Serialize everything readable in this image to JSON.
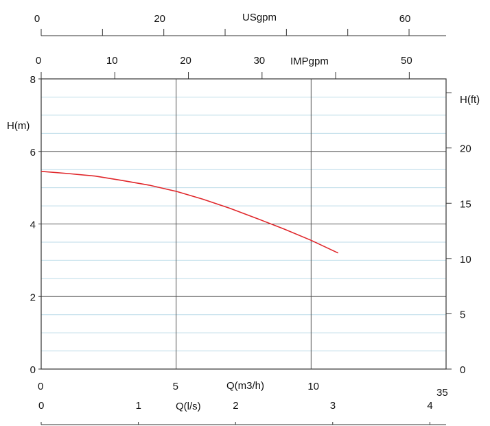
{
  "chart_data": {
    "type": "line",
    "title": "",
    "grid": true,
    "colors": {
      "curve": "#e0262a",
      "grid_major": "#555555",
      "grid_minor": "#bcdbe8"
    },
    "axes": {
      "x_main": {
        "label": "Q(m3/h)",
        "range": [
          0,
          15
        ],
        "ticks": [
          0,
          5,
          10
        ],
        "tick_labels": [
          "0",
          "5",
          "10"
        ]
      },
      "x_ls": {
        "label": "Q(l/s)",
        "range": [
          0,
          4.1667
        ],
        "ticks": [
          0,
          1,
          2,
          3,
          4
        ],
        "tick_labels": [
          "0",
          "1",
          "2",
          "3",
          "4"
        ]
      },
      "x_usgpm": {
        "label": "USgpm",
        "range": [
          0,
          66.04
        ],
        "ticks": [
          0,
          10,
          20,
          30,
          40,
          50,
          60
        ],
        "tick_labels": [
          "0",
          "",
          "20",
          "",
          "",
          "",
          "60"
        ]
      },
      "x_impgpm": {
        "label": "IMPgpm",
        "range": [
          0,
          55
        ],
        "ticks": [
          0,
          10,
          20,
          30,
          40,
          50
        ],
        "tick_labels": [
          "0",
          "10",
          "20",
          "30",
          "",
          "50"
        ]
      },
      "y_left": {
        "label": "H(m)",
        "range": [
          0,
          8
        ],
        "ticks": [
          0,
          2,
          4,
          6,
          8
        ],
        "tick_labels": [
          "0",
          "2",
          "4",
          "6",
          "8"
        ]
      },
      "y_right": {
        "label": "H(ft)",
        "range": [
          0,
          26.25
        ],
        "ticks": [
          0,
          5,
          10,
          15,
          20,
          25
        ],
        "tick_labels": [
          "0",
          "5",
          "10",
          "15",
          "20",
          ""
        ]
      }
    },
    "extra_text": "35",
    "series": [
      {
        "x": [
          0,
          1,
          2,
          3,
          4,
          5,
          6,
          7,
          8,
          9,
          10,
          11
        ],
        "y": [
          5.45,
          5.39,
          5.32,
          5.2,
          5.07,
          4.9,
          4.68,
          4.43,
          4.15,
          3.86,
          3.55,
          3.2
        ]
      }
    ]
  }
}
